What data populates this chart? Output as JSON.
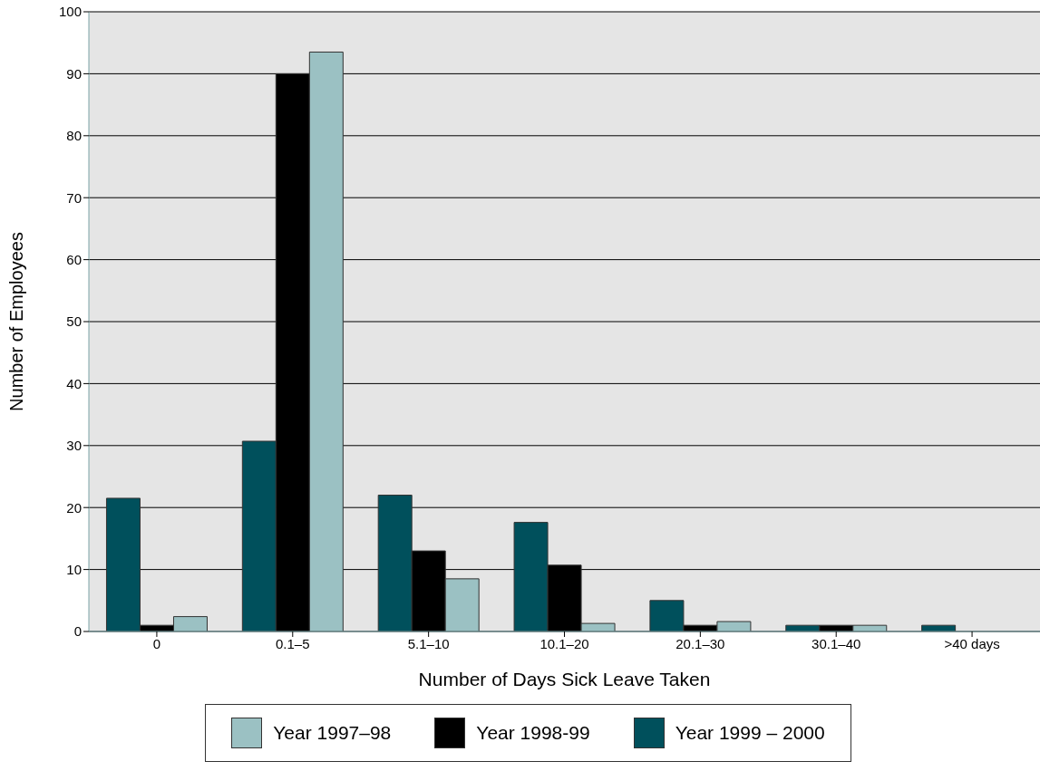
{
  "chart_data": {
    "type": "bar",
    "xlabel": "Number of Days Sick Leave Taken",
    "ylabel": "Number of Employees",
    "categories": [
      "0",
      "0.1–5",
      "5.1–10",
      "10.1–20",
      "20.1–30",
      "30.1–40",
      ">40 days"
    ],
    "series": [
      {
        "name": "Year 1999 – 2000",
        "color": "#00505c",
        "values": [
          21.5,
          30.7,
          22,
          17.6,
          5,
          1,
          1
        ]
      },
      {
        "name": "Year 1998-99",
        "color": "#000000",
        "values": [
          1,
          90,
          13,
          10.7,
          1,
          1,
          0
        ]
      },
      {
        "name": "Year 1997–98",
        "color": "#9bc1c3",
        "values": [
          2.4,
          93.5,
          8.5,
          1.3,
          1.6,
          1,
          0
        ]
      }
    ],
    "ylim": [
      0,
      100
    ],
    "yticks": [
      0,
      10,
      20,
      30,
      40,
      50,
      60,
      70,
      80,
      90,
      100
    ],
    "grid": "y",
    "legend": "bottom"
  }
}
